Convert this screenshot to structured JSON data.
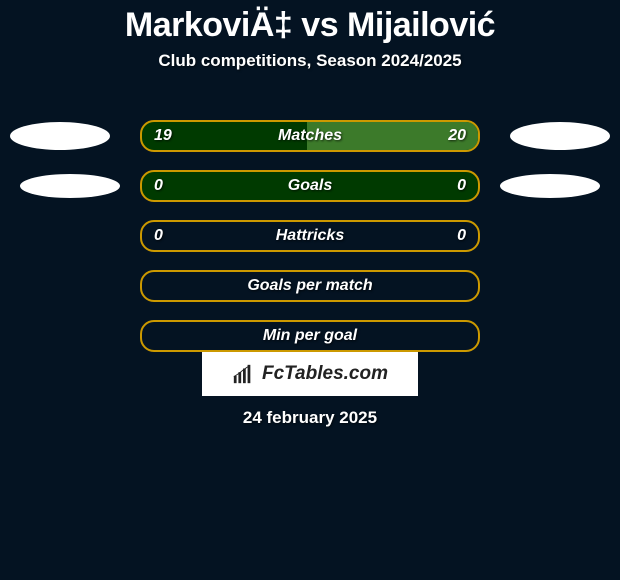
{
  "title": "MarkoviÄ‡ vs Mijailović",
  "subtitle": "Club competitions, Season 2024/2025",
  "rows": [
    {
      "label": "Matches",
      "left": "19",
      "right": "20",
      "border": "#cc9900",
      "fill": "#003a00",
      "show_values": true,
      "right_fill": "#3c7a2a",
      "right_width_pct": 51
    },
    {
      "label": "Goals",
      "left": "0",
      "right": "0",
      "border": "#cc9900",
      "fill": "#003a00",
      "show_values": true,
      "right_fill": "#3c7a2a",
      "right_width_pct": 0
    },
    {
      "label": "Hattricks",
      "left": "0",
      "right": "0",
      "border": "#cc9900",
      "fill": "#041322",
      "show_values": true,
      "right_fill": "#3c7a2a",
      "right_width_pct": 0
    },
    {
      "label": "Goals per match",
      "left": "",
      "right": "",
      "border": "#cc9900",
      "fill": "#041322",
      "show_values": false
    },
    {
      "label": "Min per goal",
      "left": "",
      "right": "",
      "border": "#cc9900",
      "fill": "#041322",
      "show_values": false
    }
  ],
  "brand": "FcTables.com",
  "date": "24 february 2025",
  "colors": {
    "page_bg": "#041322",
    "text": "#ffffff"
  }
}
